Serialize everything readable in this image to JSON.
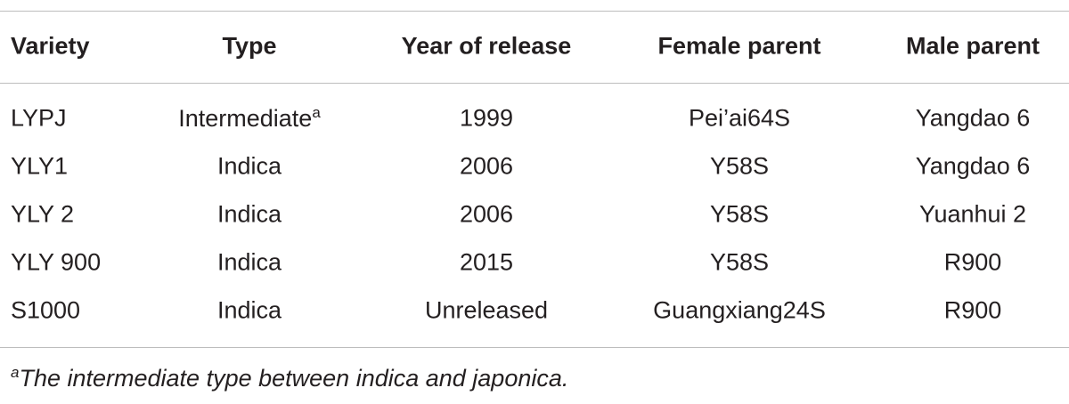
{
  "table": {
    "header": [
      "Variety",
      "Type",
      "Year of release",
      "Female parent",
      "Male parent"
    ],
    "rows": [
      [
        "LYPJ",
        {
          "text": "Intermediate",
          "sup": "a"
        },
        "1999",
        "Pei’ai64S",
        "Yangdao 6"
      ],
      [
        "YLY1",
        "Indica",
        "2006",
        "Y58S",
        "Yangdao 6"
      ],
      [
        "YLY 2",
        "Indica",
        "2006",
        "Y58S",
        "Yuanhui 2"
      ],
      [
        "YLY 900",
        "Indica",
        "2015",
        "Y58S",
        "R900"
      ],
      [
        "S1000",
        "Indica",
        "Unreleased",
        "Guangxiang24S",
        "R900"
      ]
    ],
    "footnote": {
      "mark": "a",
      "text": "The intermediate type between indica and japonica."
    }
  }
}
